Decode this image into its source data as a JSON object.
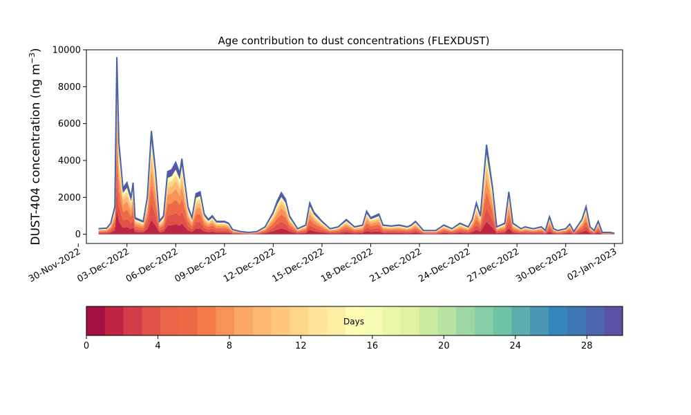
{
  "chart_data": {
    "type": "area",
    "title": "Age contribution to dust concentrations (FLEXDUST)",
    "ylabel_main": "DUST-404 concentration (ng m",
    "ylabel_sup": "−3",
    "ylabel_close": ")",
    "xlabel": "",
    "ylim": [
      -500,
      10000
    ],
    "xlim": [
      "2022-11-30T12:00",
      "2023-01-02T12:00"
    ],
    "y_ticks": [
      "0",
      "2000",
      "4000",
      "6000",
      "8000",
      "10000"
    ],
    "y_tick_values": [
      0,
      2000,
      4000,
      6000,
      8000,
      10000
    ],
    "x_ticks": [
      "30-Nov-2022",
      "03-Dec-2022",
      "06-Dec-2022",
      "09-Dec-2022",
      "12-Dec-2022",
      "15-Dec-2022",
      "18-Dec-2022",
      "21-Dec-2022",
      "24-Dec-2022",
      "27-Dec-2022",
      "30-Dec-2022",
      "02-Jan-2023"
    ],
    "x_tick_dates": [
      "2022-11-30",
      "2022-12-03",
      "2022-12-06",
      "2022-12-09",
      "2022-12-12",
      "2022-12-15",
      "2022-12-18",
      "2022-12-21",
      "2022-12-24",
      "2022-12-27",
      "2022-12-30",
      "2023-01-02"
    ],
    "total": {
      "name": "",
      "color": "#4a62a8",
      "points": [
        [
          "2022-12-01T06:00",
          300
        ],
        [
          "2022-12-01T12:00",
          320
        ],
        [
          "2022-12-01T18:00",
          330
        ],
        [
          "2022-12-02T00:00",
          600
        ],
        [
          "2022-12-02T06:00",
          1500
        ],
        [
          "2022-12-02T09:00",
          9600
        ],
        [
          "2022-12-02T12:00",
          5000
        ],
        [
          "2022-12-02T18:00",
          2500
        ],
        [
          "2022-12-03T00:00",
          2800
        ],
        [
          "2022-12-03T06:00",
          2000
        ],
        [
          "2022-12-03T09:00",
          2800
        ],
        [
          "2022-12-03T12:00",
          900
        ],
        [
          "2022-12-03T18:00",
          800
        ],
        [
          "2022-12-04T00:00",
          700
        ],
        [
          "2022-12-04T06:00",
          2000
        ],
        [
          "2022-12-04T12:00",
          5600
        ],
        [
          "2022-12-04T18:00",
          3500
        ],
        [
          "2022-12-05T00:00",
          700
        ],
        [
          "2022-12-05T06:00",
          1000
        ],
        [
          "2022-12-05T12:00",
          3400
        ],
        [
          "2022-12-05T18:00",
          3500
        ],
        [
          "2022-12-06T00:00",
          3900
        ],
        [
          "2022-12-06T06:00",
          3300
        ],
        [
          "2022-12-06T09:00",
          4100
        ],
        [
          "2022-12-06T18:00",
          1500
        ],
        [
          "2022-12-07T00:00",
          900
        ],
        [
          "2022-12-07T06:00",
          2200
        ],
        [
          "2022-12-07T12:00",
          2300
        ],
        [
          "2022-12-07T18:00",
          1100
        ],
        [
          "2022-12-08T00:00",
          800
        ],
        [
          "2022-12-08T06:00",
          1000
        ],
        [
          "2022-12-08T12:00",
          700
        ],
        [
          "2022-12-09T00:00",
          700
        ],
        [
          "2022-12-09T06:00",
          600
        ],
        [
          "2022-12-09T12:00",
          250
        ],
        [
          "2022-12-10T00:00",
          150
        ],
        [
          "2022-12-10T12:00",
          100
        ],
        [
          "2022-12-11T00:00",
          150
        ],
        [
          "2022-12-11T12:00",
          400
        ],
        [
          "2022-12-12T00:00",
          1200
        ],
        [
          "2022-12-12T06:00",
          1800
        ],
        [
          "2022-12-12T12:00",
          2250
        ],
        [
          "2022-12-12T18:00",
          1900
        ],
        [
          "2022-12-13T00:00",
          1000
        ],
        [
          "2022-12-13T12:00",
          300
        ],
        [
          "2022-12-14T00:00",
          500
        ],
        [
          "2022-12-14T06:00",
          1700
        ],
        [
          "2022-12-14T12:00",
          1200
        ],
        [
          "2022-12-15T00:00",
          700
        ],
        [
          "2022-12-15T12:00",
          300
        ],
        [
          "2022-12-16T00:00",
          400
        ],
        [
          "2022-12-16T12:00",
          800
        ],
        [
          "2022-12-17T00:00",
          400
        ],
        [
          "2022-12-17T12:00",
          500
        ],
        [
          "2022-12-17T18:00",
          1250
        ],
        [
          "2022-12-18T00:00",
          900
        ],
        [
          "2022-12-18T12:00",
          1100
        ],
        [
          "2022-12-18T18:00",
          500
        ],
        [
          "2022-12-19T06:00",
          450
        ],
        [
          "2022-12-19T18:00",
          500
        ],
        [
          "2022-12-20T06:00",
          400
        ],
        [
          "2022-12-20T12:00",
          500
        ],
        [
          "2022-12-20T18:00",
          700
        ],
        [
          "2022-12-21T06:00",
          200
        ],
        [
          "2022-12-22T00:00",
          200
        ],
        [
          "2022-12-22T12:00",
          500
        ],
        [
          "2022-12-23T00:00",
          300
        ],
        [
          "2022-12-23T12:00",
          600
        ],
        [
          "2022-12-24T00:00",
          400
        ],
        [
          "2022-12-24T06:00",
          800
        ],
        [
          "2022-12-24T12:00",
          1700
        ],
        [
          "2022-12-24T18:00",
          1000
        ],
        [
          "2022-12-25T03:00",
          4850
        ],
        [
          "2022-12-25T12:00",
          2500
        ],
        [
          "2022-12-25T18:00",
          400
        ],
        [
          "2022-12-26T06:00",
          600
        ],
        [
          "2022-12-26T12:00",
          2300
        ],
        [
          "2022-12-26T18:00",
          600
        ],
        [
          "2022-12-27T06:00",
          300
        ],
        [
          "2022-12-27T12:00",
          400
        ],
        [
          "2022-12-28T00:00",
          300
        ],
        [
          "2022-12-28T12:00",
          400
        ],
        [
          "2022-12-28T18:00",
          200
        ],
        [
          "2022-12-29T00:00",
          950
        ],
        [
          "2022-12-29T06:00",
          300
        ],
        [
          "2022-12-29T12:00",
          200
        ],
        [
          "2022-12-30T00:00",
          300
        ],
        [
          "2022-12-30T06:00",
          550
        ],
        [
          "2022-12-30T12:00",
          150
        ],
        [
          "2022-12-31T00:00",
          800
        ],
        [
          "2022-12-31T06:00",
          1500
        ],
        [
          "2022-12-31T12:00",
          400
        ],
        [
          "2022-12-31T18:00",
          200
        ],
        [
          "2023-01-01T00:00",
          700
        ],
        [
          "2023-01-01T06:00",
          100
        ],
        [
          "2023-01-01T12:00",
          100
        ],
        [
          "2023-01-01T18:00",
          100
        ],
        [
          "2023-01-02T00:00",
          50
        ]
      ]
    },
    "age_bands_fraction_of_total": [
      {
        "days_to": 2,
        "fraction": 0.14
      },
      {
        "days_to": 4,
        "fraction": 0.16
      },
      {
        "days_to": 6,
        "fraction": 0.18
      },
      {
        "days_to": 8,
        "fraction": 0.15
      },
      {
        "days_to": 10,
        "fraction": 0.11
      },
      {
        "days_to": 12,
        "fraction": 0.08
      },
      {
        "days_to": 16,
        "fraction": 0.08
      },
      {
        "days_to": 30,
        "fraction": 0.1
      }
    ],
    "colorbar": {
      "label": "Days",
      "vmin": 0,
      "vmax": 30,
      "tick_labels": [
        "0",
        "4",
        "8",
        "12",
        "16",
        "20",
        "24",
        "28"
      ],
      "tick_values": [
        0,
        4,
        8,
        12,
        16,
        20,
        24,
        28
      ],
      "colors": [
        "#a50f44",
        "#be2443",
        "#d33c4a",
        "#e0514a",
        "#e96448",
        "#ee6a47",
        "#f67c4a",
        "#f89256",
        "#fba766",
        "#fdb96f",
        "#fec77a",
        "#fed68a",
        "#fee39a",
        "#fdeea6",
        "#fefbb3",
        "#f6fcb5",
        "#ebf7a8",
        "#dff29e",
        "#ccea9d",
        "#b7e2a1",
        "#9ed7a4",
        "#86cea6",
        "#6fc3a9",
        "#5cadab",
        "#4997b3",
        "#3586bb",
        "#3e78b3",
        "#4c66ae",
        "#5a53a3"
      ]
    }
  }
}
